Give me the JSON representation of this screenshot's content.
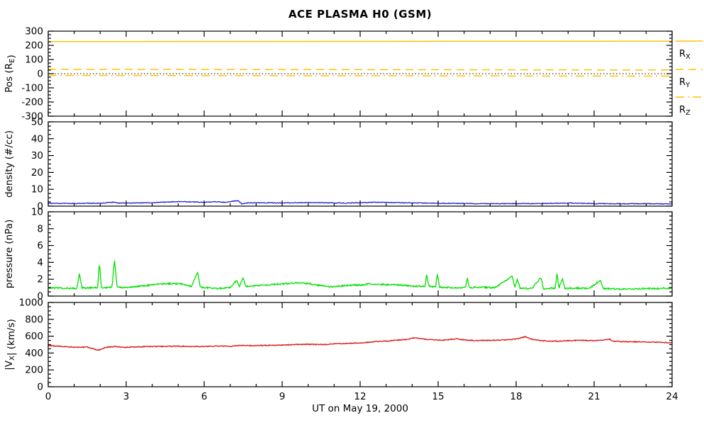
{
  "title": "ACE PLASMA H0 (GSM)",
  "colors": {
    "orange": "#FFC400",
    "blue": "#2121CE",
    "green": "#00DF00",
    "red": "#DC1E1E",
    "axis": "#000000",
    "background": "#FFFFFF"
  },
  "legend": {
    "position": "right-of-top-panel",
    "items": [
      {
        "text": "R",
        "sub": "X",
        "style": "solid"
      },
      {
        "text": "R",
        "sub": "Y",
        "style": "dashed"
      },
      {
        "text": "R",
        "sub": "Z",
        "style": "dashdot"
      }
    ]
  },
  "chart_data": {
    "type": "line",
    "title": "ACE PLASMA H0 (GSM)",
    "xlabel": "UT on May 19, 2000",
    "x_range": [
      0,
      24
    ],
    "x_major_ticks": [
      0,
      3,
      6,
      9,
      12,
      15,
      18,
      21,
      24
    ],
    "x_minor_step": 1,
    "grid": false,
    "panels": [
      {
        "ylabel": "Pos (RE)",
        "ylabel_parts": [
          {
            "t": "Pos (R"
          },
          {
            "t": "E",
            "sub": true
          },
          {
            "t": ")"
          }
        ],
        "ylim": [
          -300,
          300
        ],
        "yticks": [
          -300,
          -200,
          -100,
          0,
          100,
          200,
          300
        ],
        "yminor": 25,
        "series": [
          {
            "name": "RX",
            "color": "#FFC400",
            "style": "solid",
            "width": 1.5,
            "noise": 0,
            "seed": 1,
            "points": [
              [
                0,
                226
              ],
              [
                24,
                229
              ]
            ]
          },
          {
            "name": "RY",
            "color": "#FFC400",
            "style": "dashed",
            "width": 1.5,
            "noise": 0,
            "seed": 2,
            "points": [
              [
                0,
                31
              ],
              [
                24,
                26
              ]
            ]
          },
          {
            "name": "RZ",
            "color": "#FFC400",
            "style": "dashdot",
            "width": 1.5,
            "noise": 0,
            "seed": 3,
            "points": [
              [
                0,
                -13
              ],
              [
                24,
                -17
              ]
            ]
          },
          {
            "name": "zero-reference",
            "color": "#000000",
            "style": "dotted",
            "width": 1,
            "noise": 0,
            "seed": 4,
            "points": [
              [
                0,
                0
              ],
              [
                24,
                0
              ]
            ]
          }
        ]
      },
      {
        "ylabel": "density (#/cc)",
        "ylabel_parts": [
          {
            "t": "density (#/cc)"
          }
        ],
        "ylim": [
          0,
          50
        ],
        "yticks": [
          0,
          10,
          20,
          30,
          40,
          50
        ],
        "yminor": 2.5,
        "series": [
          {
            "name": "density",
            "color": "#2121CE",
            "style": "solid",
            "width": 1.3,
            "noise": 0.2,
            "seed": 7,
            "points": [
              [
                0,
                1.7
              ],
              [
                0.5,
                1.6
              ],
              [
                1,
                1.6
              ],
              [
                1.5,
                1.7
              ],
              [
                2,
                1.7
              ],
              [
                2.55,
                2.4
              ],
              [
                2.7,
                1.8
              ],
              [
                3,
                1.8
              ],
              [
                3.5,
                1.9
              ],
              [
                4,
                2.0
              ],
              [
                4.5,
                2.4
              ],
              [
                5,
                2.7
              ],
              [
                5.5,
                2.5
              ],
              [
                6,
                2.3
              ],
              [
                6.4,
                2.6
              ],
              [
                6.8,
                2.3
              ],
              [
                7.3,
                3.3
              ],
              [
                7.45,
                1.3
              ],
              [
                7.6,
                1.9
              ],
              [
                8,
                2.0
              ],
              [
                8.5,
                2.0
              ],
              [
                9,
                1.9
              ],
              [
                9.5,
                2.0
              ],
              [
                10,
                2.1
              ],
              [
                10.5,
                2.0
              ],
              [
                11,
                1.9
              ],
              [
                11.5,
                1.8
              ],
              [
                12,
                2.0
              ],
              [
                12.5,
                2.3
              ],
              [
                13,
                2.2
              ],
              [
                13.5,
                2.0
              ],
              [
                14,
                1.9
              ],
              [
                14.5,
                1.8
              ],
              [
                15,
                1.7
              ],
              [
                16,
                1.6
              ],
              [
                17,
                1.5
              ],
              [
                18,
                1.5
              ],
              [
                19,
                1.6
              ],
              [
                20,
                1.8
              ],
              [
                20.5,
                1.7
              ],
              [
                21,
                1.5
              ],
              [
                22,
                1.4
              ],
              [
                23,
                1.5
              ],
              [
                24,
                1.3
              ]
            ]
          }
        ]
      },
      {
        "ylabel": "pressure (nPa)",
        "ylabel_parts": [
          {
            "t": "pressure (nPa)"
          }
        ],
        "ylim": [
          0,
          10
        ],
        "yticks": [
          0,
          2,
          4,
          6,
          8,
          10
        ],
        "yminor": 0.5,
        "series": [
          {
            "name": "pressure",
            "color": "#00DF00",
            "style": "solid",
            "width": 1.3,
            "noise": 0.09,
            "seed": 13,
            "points": [
              [
                0,
                1.0
              ],
              [
                0.5,
                0.95
              ],
              [
                1.1,
                0.9
              ],
              [
                1.2,
                2.6
              ],
              [
                1.3,
                0.95
              ],
              [
                1.9,
                1.0
              ],
              [
                1.97,
                3.85
              ],
              [
                2.05,
                1.0
              ],
              [
                2.45,
                1.05
              ],
              [
                2.55,
                4.3
              ],
              [
                2.65,
                1.05
              ],
              [
                3,
                1.0
              ],
              [
                3.6,
                1.2
              ],
              [
                4.2,
                1.4
              ],
              [
                4.8,
                1.5
              ],
              [
                5.2,
                1.4
              ],
              [
                5.5,
                1.1
              ],
              [
                5.75,
                2.85
              ],
              [
                5.85,
                1.05
              ],
              [
                6.2,
                0.95
              ],
              [
                6.6,
                0.9
              ],
              [
                7.0,
                1.0
              ],
              [
                7.25,
                1.85
              ],
              [
                7.35,
                1.1
              ],
              [
                7.5,
                2.2
              ],
              [
                7.6,
                1.15
              ],
              [
                8,
                1.25
              ],
              [
                8.5,
                1.35
              ],
              [
                9,
                1.45
              ],
              [
                9.5,
                1.55
              ],
              [
                10,
                1.5
              ],
              [
                10.4,
                1.3
              ],
              [
                10.8,
                1.1
              ],
              [
                11.2,
                1.2
              ],
              [
                11.6,
                1.3
              ],
              [
                12,
                1.3
              ],
              [
                12.4,
                1.45
              ],
              [
                12.8,
                1.4
              ],
              [
                13.2,
                1.35
              ],
              [
                13.6,
                1.3
              ],
              [
                14,
                1.2
              ],
              [
                14.5,
                1.15
              ],
              [
                14.55,
                2.55
              ],
              [
                14.65,
                1.15
              ],
              [
                14.9,
                1.1
              ],
              [
                14.97,
                2.65
              ],
              [
                15.05,
                1.05
              ],
              [
                15.5,
                1.0
              ],
              [
                16.05,
                1.0
              ],
              [
                16.12,
                2.1
              ],
              [
                16.2,
                1.0
              ],
              [
                16.7,
                1.05
              ],
              [
                17.2,
                1.0
              ],
              [
                17.85,
                2.4
              ],
              [
                17.95,
                1.0
              ],
              [
                18.05,
                2.0
              ],
              [
                18.15,
                0.9
              ],
              [
                18.6,
                0.9
              ],
              [
                18.95,
                2.2
              ],
              [
                19.05,
                0.9
              ],
              [
                19.5,
                0.95
              ],
              [
                19.57,
                2.65
              ],
              [
                19.65,
                0.95
              ],
              [
                19.78,
                2.1
              ],
              [
                19.88,
                0.9
              ],
              [
                20.3,
                0.95
              ],
              [
                20.8,
                0.9
              ],
              [
                21.25,
                1.85
              ],
              [
                21.35,
                0.9
              ],
              [
                21.8,
                0.85
              ],
              [
                22.4,
                0.85
              ],
              [
                23,
                0.9
              ],
              [
                23.5,
                0.9
              ],
              [
                24,
                0.95
              ]
            ]
          }
        ]
      },
      {
        "ylabel": "|VX| (km/s)",
        "ylabel_parts": [
          {
            "t": "|V"
          },
          {
            "t": "X",
            "sub": true
          },
          {
            "t": "| (km/s)"
          }
        ],
        "ylim": [
          0,
          1000
        ],
        "yticks": [
          0,
          200,
          400,
          600,
          800,
          1000
        ],
        "yminor": 50,
        "series": [
          {
            "name": "vx-speed",
            "color": "#DC1E1E",
            "style": "solid",
            "width": 1.4,
            "noise": 5,
            "seed": 21,
            "points": [
              [
                0,
                487
              ],
              [
                0.4,
                482
              ],
              [
                0.8,
                472
              ],
              [
                1.2,
                468
              ],
              [
                1.5,
                470
              ],
              [
                1.7,
                455
              ],
              [
                1.9,
                433
              ],
              [
                2.0,
                440
              ],
              [
                2.2,
                468
              ],
              [
                2.6,
                477
              ],
              [
                3.0,
                468
              ],
              [
                3.4,
                473
              ],
              [
                3.8,
                478
              ],
              [
                4.2,
                477
              ],
              [
                4.6,
                480
              ],
              [
                5.0,
                482
              ],
              [
                5.4,
                479
              ],
              [
                5.8,
                477
              ],
              [
                6.2,
                481
              ],
              [
                6.6,
                483
              ],
              [
                7.0,
                479
              ],
              [
                7.4,
                490
              ],
              [
                7.8,
                487
              ],
              [
                8.2,
                490
              ],
              [
                8.6,
                492
              ],
              [
                9.0,
                494
              ],
              [
                9.4,
                498
              ],
              [
                9.8,
                504
              ],
              [
                10.2,
                502
              ],
              [
                10.6,
                500
              ],
              [
                11.0,
                509
              ],
              [
                11.4,
                513
              ],
              [
                11.8,
                517
              ],
              [
                12.2,
                524
              ],
              [
                12.6,
                536
              ],
              [
                13.0,
                541
              ],
              [
                13.4,
                552
              ],
              [
                13.8,
                562
              ],
              [
                14.1,
                583
              ],
              [
                14.4,
                567
              ],
              [
                14.8,
                556
              ],
              [
                15.2,
                553
              ],
              [
                15.7,
                568
              ],
              [
                16.0,
                556
              ],
              [
                16.4,
                547
              ],
              [
                16.8,
                549
              ],
              [
                17.2,
                552
              ],
              [
                17.6,
                556
              ],
              [
                18.0,
                567
              ],
              [
                18.35,
                593
              ],
              [
                18.6,
                563
              ],
              [
                19.0,
                546
              ],
              [
                19.4,
                541
              ],
              [
                19.8,
                543
              ],
              [
                20.2,
                548
              ],
              [
                20.6,
                551
              ],
              [
                21.0,
                546
              ],
              [
                21.4,
                558
              ],
              [
                21.6,
                565
              ],
              [
                21.7,
                542
              ],
              [
                22.0,
                536
              ],
              [
                22.4,
                532
              ],
              [
                22.8,
                534
              ],
              [
                23.2,
                530
              ],
              [
                23.6,
                526
              ],
              [
                24,
                521
              ]
            ]
          }
        ]
      }
    ]
  }
}
